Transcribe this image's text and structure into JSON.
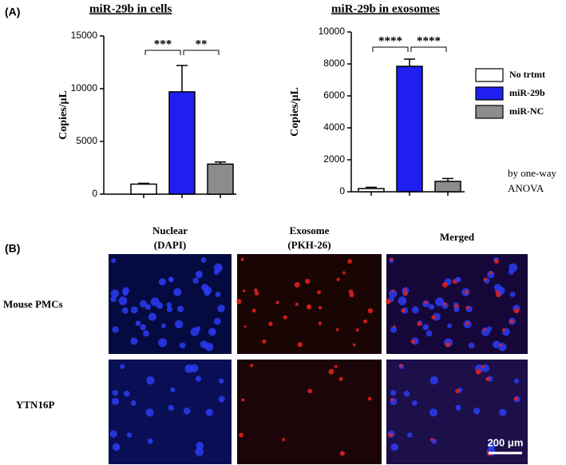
{
  "panel_a_label": "(A)",
  "chart_data": [
    {
      "type": "bar",
      "title": "miR-29b in cells",
      "y_label": "Copies/μL",
      "categories": [
        null,
        null,
        null
      ],
      "values": [
        950,
        9700,
        2850
      ],
      "errors": [
        80,
        2500,
        200
      ],
      "colors": [
        "#ffffff",
        "#1f1ff0",
        "#8c8c8c"
      ],
      "ylim": [
        0,
        15000
      ],
      "yticks": [
        0,
        5000,
        10000,
        15000
      ],
      "annotations": [
        {
          "text": "***",
          "from": 0,
          "to": 1
        },
        {
          "text": "**",
          "from": 1,
          "to": 2
        }
      ]
    },
    {
      "type": "bar",
      "title": "miR-29b in exosomes",
      "y_label": "Copies/μL",
      "categories": [
        null,
        null,
        null
      ],
      "values": [
        200,
        7850,
        650
      ],
      "errors": [
        80,
        450,
        180
      ],
      "colors": [
        "#ffffff",
        "#1f1ff0",
        "#8c8c8c"
      ],
      "ylim": [
        0,
        10000
      ],
      "yticks": [
        0,
        2000,
        4000,
        6000,
        8000,
        10000
      ],
      "annotations": [
        {
          "text": "****",
          "from": 0,
          "to": 1
        },
        {
          "text": "****",
          "from": 1,
          "to": 2
        }
      ]
    }
  ],
  "legend": [
    {
      "name": "No trtmt",
      "color": "#ffffff"
    },
    {
      "name": "miR-29b",
      "color": "#1f1ff0"
    },
    {
      "name": "miR-NC",
      "color": "#8c8c8c"
    }
  ],
  "note": [
    "by  one-way",
    "ANOVA"
  ],
  "panel_b": {
    "label": "(B)",
    "columns": [
      [
        "Nuclear",
        "(DAPI)"
      ],
      [
        "Exosome",
        "(PKH-26)"
      ],
      [
        "Merged"
      ]
    ],
    "rows": [
      "Mouse PMCs",
      "YTN16P"
    ],
    "scale_bar": "200 μm"
  }
}
